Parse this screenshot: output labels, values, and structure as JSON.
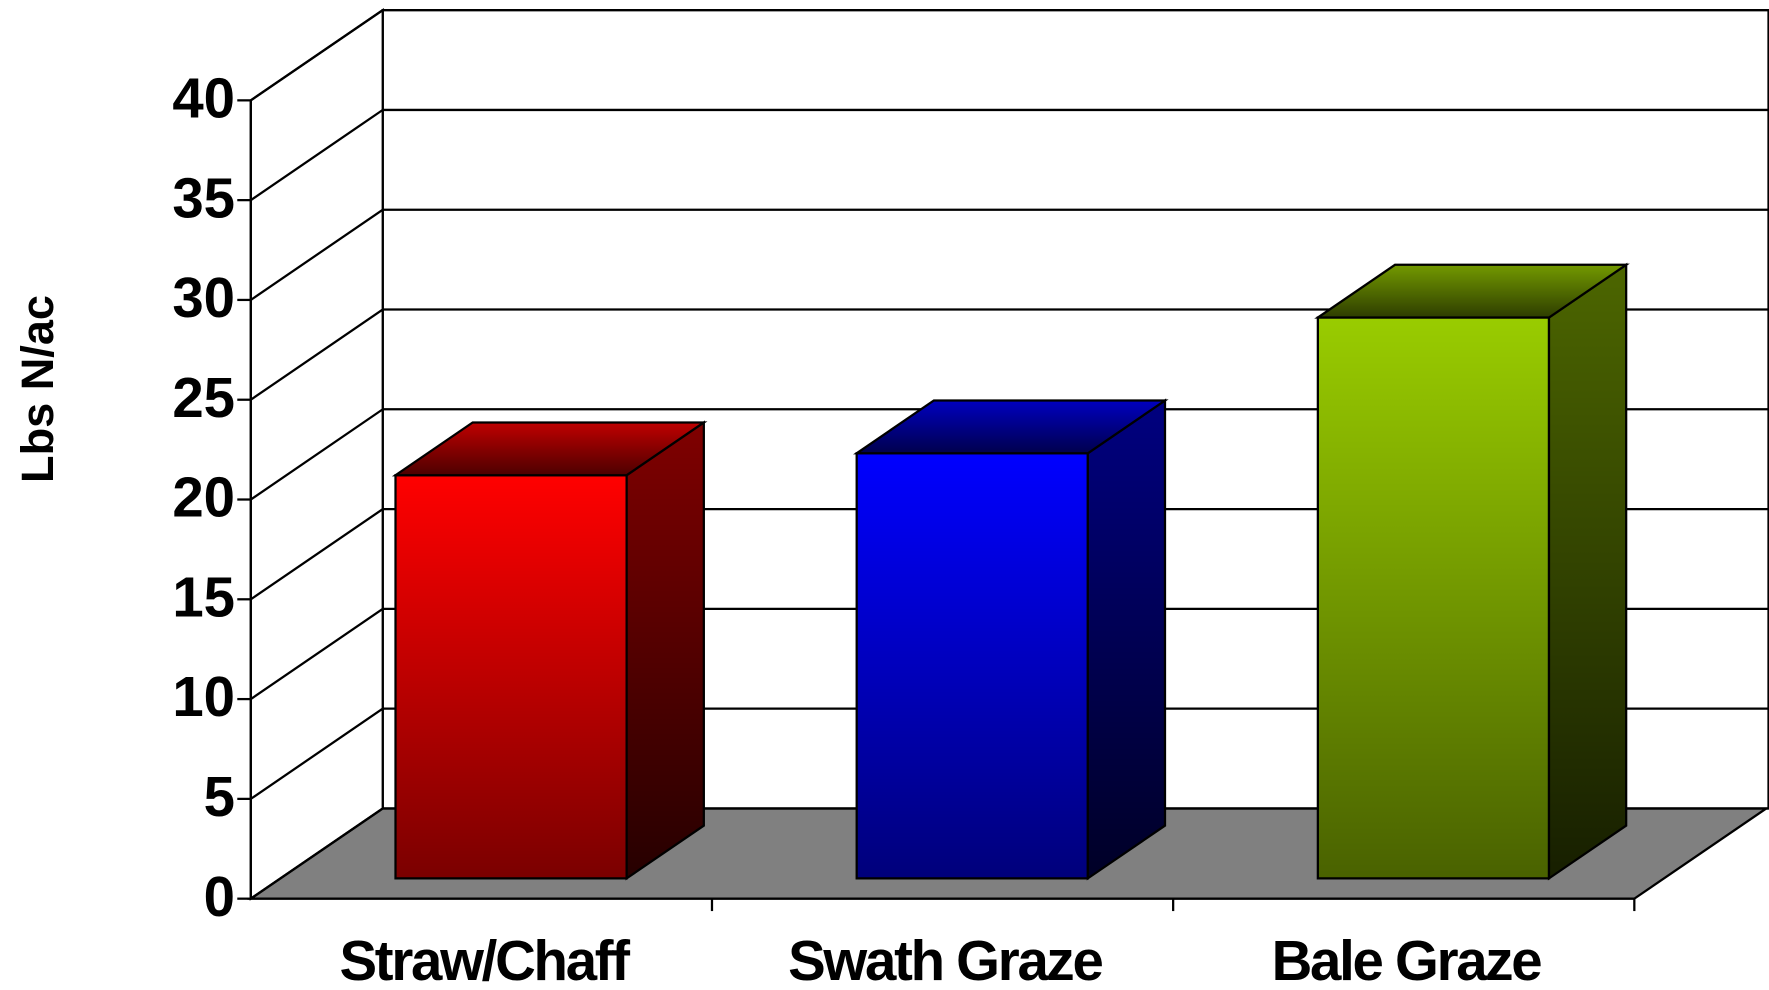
{
  "chart_data": {
    "type": "bar3d",
    "y_label": "Lbs N/ac",
    "categories": [
      "Straw/Chaff",
      "Swath Graze",
      "Bale Graze"
    ],
    "values": [
      20.2,
      21.3,
      28.1
    ],
    "colors": [
      "#ff0000",
      "#0000ff",
      "#99cc00"
    ],
    "ylim": [
      0,
      40
    ],
    "yticks": [
      0,
      5,
      10,
      15,
      20,
      25,
      30,
      35,
      40
    ],
    "grid": true
  }
}
